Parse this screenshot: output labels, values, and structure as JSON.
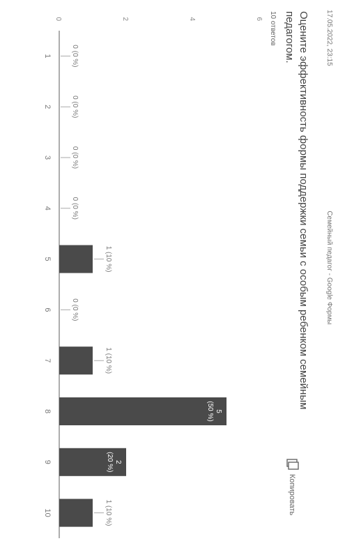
{
  "header": {
    "timestamp": "17.05.2022, 23:15",
    "form_name": "Семейный педагог - Google Формы"
  },
  "question": "Оцените эффективность формы поддержки семьи с особым ребенком семейным педагогом.",
  "responses_count": "10 ответов",
  "copy_button": {
    "label": "Копировать",
    "icon": "copy-icon"
  },
  "chart_data": {
    "type": "bar",
    "categories": [
      "1",
      "2",
      "3",
      "4",
      "5",
      "6",
      "7",
      "8",
      "9",
      "10"
    ],
    "values": [
      0,
      0,
      0,
      0,
      1,
      0,
      1,
      5,
      2,
      1
    ],
    "data_labels": [
      "0 (0 %)",
      "0 (0 %)",
      "0 (0 %)",
      "0 (0 %)",
      "1 (10 %)",
      "0 (0 %)",
      "1 (10 %)",
      "5 (50 %)",
      "2 (20 %)",
      "1 (10 %)"
    ],
    "y_ticks": [
      "0",
      "2",
      "4",
      "6"
    ],
    "ylim": [
      0,
      6
    ],
    "grid": false,
    "bar_color": "#4a4a4a"
  }
}
